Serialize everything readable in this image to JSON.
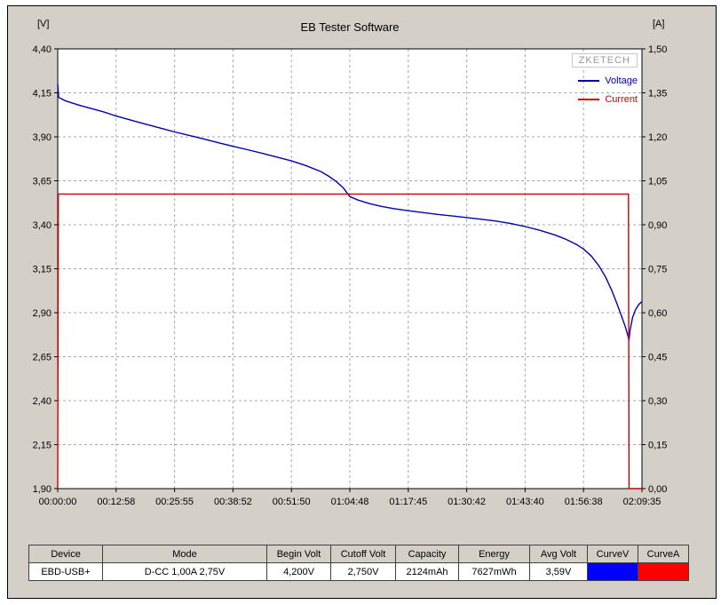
{
  "chart_data": {
    "type": "line",
    "title": "EB Tester Software",
    "legend": {
      "position": "top-right",
      "brand": "ZKETECH"
    },
    "grid": true,
    "x_axis": {
      "range_s": [
        0,
        7775
      ],
      "tick_labels": [
        "00:00:00",
        "00:12:58",
        "00:25:55",
        "00:38:52",
        "00:51:50",
        "01:04:48",
        "01:17:45",
        "01:30:42",
        "01:43:40",
        "01:56:38",
        "02:09:35"
      ]
    },
    "y_left_axis": {
      "unit": "[V]",
      "range": [
        1.9,
        4.4
      ],
      "tick_labels": [
        "4,40",
        "4,15",
        "3,90",
        "3,65",
        "3,40",
        "3,15",
        "2,90",
        "2,65",
        "2,40",
        "2,15",
        "1,90"
      ]
    },
    "y_right_axis": {
      "unit": "[A]",
      "range": [
        0.0,
        1.5
      ],
      "tick_labels": [
        "1,50",
        "1,35",
        "1,20",
        "1,05",
        "0,90",
        "0,75",
        "0,60",
        "0,45",
        "0,30",
        "0,15",
        "0,00"
      ]
    },
    "series": [
      {
        "name": "Voltage",
        "axis": "left",
        "color": "#0000b0",
        "points": [
          [
            0,
            4.2
          ],
          [
            12,
            4.125
          ],
          [
            100,
            4.105
          ],
          [
            300,
            4.078
          ],
          [
            600,
            4.043
          ],
          [
            778,
            4.018
          ],
          [
            1000,
            3.992
          ],
          [
            1166,
            3.972
          ],
          [
            1400,
            3.946
          ],
          [
            1555,
            3.928
          ],
          [
            1800,
            3.903
          ],
          [
            1944,
            3.888
          ],
          [
            2150,
            3.865
          ],
          [
            2332,
            3.846
          ],
          [
            2550,
            3.824
          ],
          [
            2721,
            3.806
          ],
          [
            2950,
            3.781
          ],
          [
            3110,
            3.763
          ],
          [
            3300,
            3.737
          ],
          [
            3499,
            3.703
          ],
          [
            3600,
            3.678
          ],
          [
            3700,
            3.648
          ],
          [
            3800,
            3.61
          ],
          [
            3888,
            3.56
          ],
          [
            4000,
            3.54
          ],
          [
            4150,
            3.52
          ],
          [
            4300,
            3.505
          ],
          [
            4470,
            3.492
          ],
          [
            4665,
            3.48
          ],
          [
            4900,
            3.467
          ],
          [
            5054,
            3.459
          ],
          [
            5250,
            3.45
          ],
          [
            5443,
            3.441
          ],
          [
            5650,
            3.431
          ],
          [
            5832,
            3.421
          ],
          [
            6030,
            3.407
          ],
          [
            6220,
            3.39
          ],
          [
            6420,
            3.368
          ],
          [
            6610,
            3.343
          ],
          [
            6760,
            3.318
          ],
          [
            6900,
            3.289
          ],
          [
            6998,
            3.262
          ],
          [
            7100,
            3.222
          ],
          [
            7200,
            3.168
          ],
          [
            7290,
            3.103
          ],
          [
            7370,
            3.03
          ],
          [
            7440,
            2.955
          ],
          [
            7500,
            2.885
          ],
          [
            7550,
            2.823
          ],
          [
            7585,
            2.775
          ],
          [
            7602,
            2.745
          ],
          [
            7615,
            2.798
          ],
          [
            7650,
            2.872
          ],
          [
            7690,
            2.918
          ],
          [
            7732,
            2.947
          ],
          [
            7775,
            2.963
          ]
        ]
      },
      {
        "name": "Current",
        "axis": "right",
        "color": "#cc0000",
        "points": [
          [
            0,
            0.0
          ],
          [
            8,
            1.005
          ],
          [
            7595,
            1.005
          ],
          [
            7603,
            0.0
          ],
          [
            7775,
            0.0
          ]
        ]
      }
    ]
  },
  "table": {
    "headers": [
      "Device",
      "Mode",
      "Begin Volt",
      "Cutoff Volt",
      "Capacity",
      "Energy",
      "Avg Volt",
      "CurveV",
      "CurveA"
    ],
    "row": {
      "device": "EBD-USB+",
      "mode": "D-CC 1,00A 2,75V",
      "begin_volt": "4,200V",
      "cutoff_volt": "2,750V",
      "capacity": "2124mAh",
      "energy": "7627mWh",
      "avg_volt": "3,59V"
    },
    "curvev_color": "#0000ff",
    "curvea_color": "#ff0000"
  },
  "colors": {
    "window_bg": "#d4d0c8",
    "plot_bg": "#ffffff",
    "grid": "#a8a8a8",
    "axis": "#000000",
    "brand_text": "#9a9a9a"
  }
}
